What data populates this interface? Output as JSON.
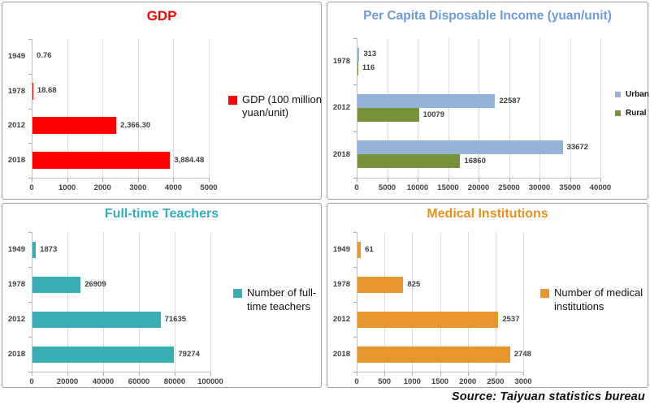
{
  "source_note": "Source: Taiyuan statistics bureau",
  "palette": {
    "grid": "#d9d9d9",
    "axis": "#bfbfbf",
    "label": "#404040"
  },
  "chart_data": [
    {
      "id": "gdp",
      "type": "bar",
      "orientation": "horizontal",
      "title": "GDP",
      "title_color": "#ff0000",
      "categories": [
        "1949",
        "1978",
        "2012",
        "2018"
      ],
      "series": [
        {
          "name": "GDP (100 million yuan/unit)",
          "color": "#ff0000",
          "values": [
            0.76,
            18.68,
            2366.3,
            3884.48
          ],
          "labels": [
            "0.76",
            "18.68",
            "2,366.30",
            "3,884.48"
          ]
        }
      ],
      "xlim": [
        0,
        5000
      ],
      "xticks": [
        0,
        1000,
        2000,
        3000,
        4000,
        5000
      ],
      "grid": true,
      "legend_position": "right"
    },
    {
      "id": "income",
      "type": "bar",
      "orientation": "horizontal",
      "title": "Per Capita Disposable Income (yuan/unit)",
      "title_color": "#6d9bd4",
      "categories": [
        "1978",
        "2012",
        "2018"
      ],
      "series": [
        {
          "name": "Urban",
          "color": "#95b3d7",
          "values": [
            313,
            22587,
            33672
          ],
          "labels": [
            "313",
            "22587",
            "33672"
          ]
        },
        {
          "name": "Rural",
          "color": "#76933c",
          "values": [
            116,
            10079,
            16860
          ],
          "labels": [
            "116",
            "10079",
            "16860"
          ]
        }
      ],
      "xlim": [
        0,
        40000
      ],
      "xticks": [
        0,
        5000,
        10000,
        15000,
        20000,
        25000,
        30000,
        35000,
        40000
      ],
      "grid": true,
      "legend_position": "right"
    },
    {
      "id": "teachers",
      "type": "bar",
      "orientation": "horizontal",
      "title": "Full-time Teachers",
      "title_color": "#31aebd",
      "categories": [
        "1949",
        "1978",
        "2012",
        "2018"
      ],
      "series": [
        {
          "name": "Number of full-time teachers",
          "color": "#3aaeb5",
          "values": [
            1873,
            26909,
            71635,
            79274
          ],
          "labels": [
            "1873",
            "26909",
            "71635",
            "79274"
          ]
        }
      ],
      "xlim": [
        0,
        100000
      ],
      "xticks": [
        0,
        20000,
        40000,
        60000,
        80000,
        100000
      ],
      "grid": true,
      "legend_position": "right"
    },
    {
      "id": "medical",
      "type": "bar",
      "orientation": "horizontal",
      "title": "Medical Institutions",
      "title_color": "#e8911d",
      "categories": [
        "1949",
        "1978",
        "2012",
        "2018"
      ],
      "series": [
        {
          "name": "Number of medical institutions",
          "color": "#e8962e",
          "values": [
            61,
            825,
            2537,
            2748
          ],
          "labels": [
            "61",
            "825",
            "2537",
            "2748"
          ]
        }
      ],
      "xlim": [
        0,
        3000
      ],
      "xticks": [
        0,
        500,
        1000,
        1500,
        2000,
        2500,
        3000
      ],
      "grid": true,
      "legend_position": "right"
    }
  ]
}
